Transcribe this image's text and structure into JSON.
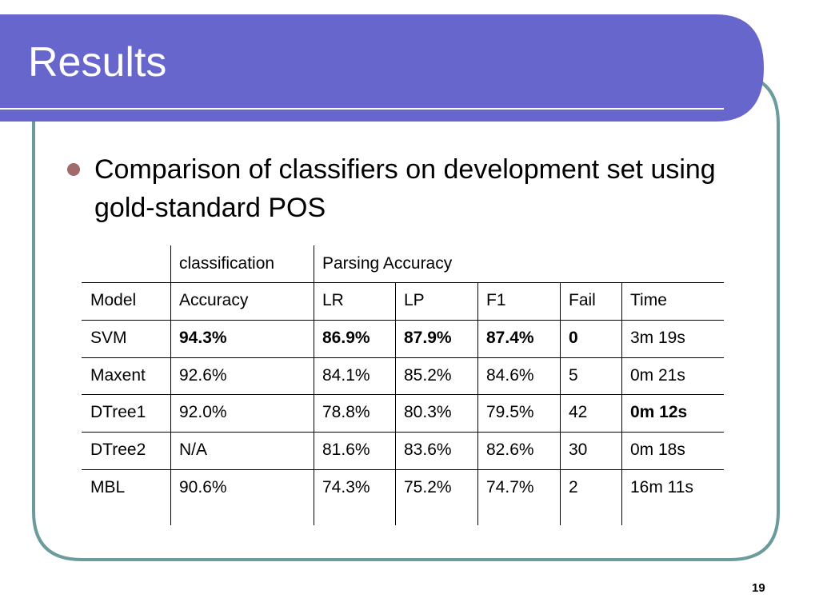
{
  "header": {
    "title": "Results"
  },
  "bullets": [
    "Comparison of classifiers on development set using gold-standard POS"
  ],
  "table": {
    "group_headers": [
      "classification",
      "Parsing Accuracy"
    ],
    "columns": [
      "Model",
      "Accuracy",
      "LR",
      "LP",
      "F1",
      "Fail",
      "Time"
    ],
    "rows": [
      [
        "SVM",
        "94.3%",
        "86.9%",
        "87.9%",
        "87.4%",
        "0",
        "3m 19s"
      ],
      [
        "Maxent",
        "92.6%",
        "84.1%",
        "85.2%",
        "84.6%",
        "5",
        "0m 21s"
      ],
      [
        "DTree1",
        "92.0%",
        "78.8%",
        "80.3%",
        "79.5%",
        "42",
        "0m 12s"
      ],
      [
        "DTree2",
        "N/A",
        "81.6%",
        "83.6%",
        "82.6%",
        "30",
        "0m 18s"
      ],
      [
        "MBL",
        "90.6%",
        "74.3%",
        "75.2%",
        "74.7%",
        "2",
        "16m 11s"
      ]
    ]
  },
  "page_number": "19"
}
